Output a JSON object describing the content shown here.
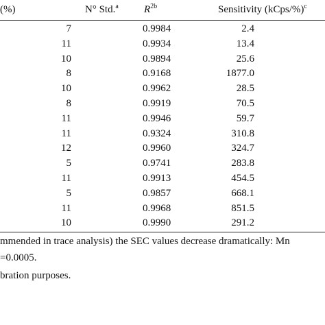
{
  "table": {
    "header": {
      "pct": "(%)",
      "n_std": "N° Std.",
      "n_std_note": "a",
      "r2": "R",
      "r2_sup": "2b",
      "sensitivity": "Sensitivity (kCps/%)",
      "sensitivity_note": "c"
    },
    "rows": [
      [
        "7",
        "0.9984",
        "2.4"
      ],
      [
        "11",
        "0.9934",
        "13.4"
      ],
      [
        "10",
        "0.9894",
        "25.6"
      ],
      [
        "8",
        "0.9168",
        "1877.0"
      ],
      [
        "10",
        "0.9962",
        "28.5"
      ],
      [
        "8",
        "0.9919",
        "70.5"
      ],
      [
        "11",
        "0.9946",
        "59.7"
      ],
      [
        "11",
        "0.9324",
        "310.8"
      ],
      [
        "12",
        "0.9960",
        "324.7"
      ],
      [
        "5",
        "0.9741",
        "283.8"
      ],
      [
        "11",
        "0.9913",
        "454.5"
      ],
      [
        "5",
        "0.9857",
        "668.1"
      ],
      [
        "11",
        "0.9968",
        "851.5"
      ],
      [
        "10",
        "0.9990",
        "291.2"
      ]
    ]
  },
  "footnotes": [
    "mmended in trace analysis) the SEC values decrease dramatically: Mn",
    "=0.0005.",
    "bration purposes."
  ]
}
